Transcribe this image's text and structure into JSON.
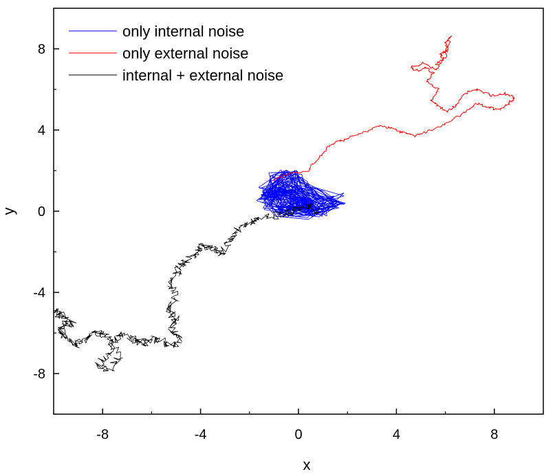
{
  "chart_data": {
    "type": "line",
    "title": "",
    "xlabel": "x",
    "ylabel": "y",
    "xlim": [
      -10,
      10
    ],
    "ylim": [
      -10,
      10
    ],
    "x_ticks": [
      -8,
      -4,
      0,
      4,
      8
    ],
    "y_ticks": [
      8,
      4,
      0,
      -4,
      -8
    ],
    "x_tick_labels": [
      "-8",
      "-4",
      "0",
      "4",
      "8"
    ],
    "y_tick_labels": [
      "8",
      "4",
      "0",
      "-4",
      "-8"
    ],
    "grid": false,
    "legend_position": "top-left",
    "series": [
      {
        "name": "only internal noise",
        "color": "#0000ff",
        "style": "dense-cluster",
        "center": [
          -0.3,
          0.6
        ],
        "spread": [
          0.9,
          0.6
        ],
        "points": [
          [
            -1.2,
            0.9
          ],
          [
            -0.8,
            1.5
          ],
          [
            -0.3,
            1.7
          ],
          [
            0.2,
            1.2
          ],
          [
            0.6,
            0.8
          ],
          [
            1.5,
            0.5
          ],
          [
            0.8,
            0.1
          ],
          [
            0.2,
            0.0
          ],
          [
            -0.5,
            0.1
          ],
          [
            -1.0,
            0.3
          ],
          [
            -1.3,
            0.6
          ],
          [
            -0.6,
            1.1
          ],
          [
            0.1,
            0.6
          ],
          [
            0.5,
            0.3
          ],
          [
            -0.2,
            0.4
          ],
          [
            -0.4,
            0.9
          ]
        ]
      },
      {
        "name": "only external noise",
        "color": "#ff0000",
        "style": "random-walk",
        "points": [
          [
            -1.1,
            1.5
          ],
          [
            -0.5,
            1.8
          ],
          [
            0.4,
            2.0
          ],
          [
            0.8,
            2.6
          ],
          [
            1.2,
            3.2
          ],
          [
            1.8,
            3.5
          ],
          [
            2.5,
            3.8
          ],
          [
            3.3,
            4.2
          ],
          [
            3.8,
            4.1
          ],
          [
            4.2,
            3.9
          ],
          [
            4.8,
            3.7
          ],
          [
            5.2,
            3.9
          ],
          [
            6.0,
            4.3
          ],
          [
            6.8,
            4.9
          ],
          [
            7.3,
            5.3
          ],
          [
            7.8,
            5.1
          ],
          [
            8.2,
            5.0
          ],
          [
            8.6,
            5.3
          ],
          [
            8.8,
            5.6
          ],
          [
            8.4,
            5.8
          ],
          [
            7.9,
            5.7
          ],
          [
            7.3,
            6.0
          ],
          [
            6.9,
            5.9
          ],
          [
            6.4,
            5.2
          ],
          [
            6.1,
            4.9
          ],
          [
            5.8,
            5.1
          ],
          [
            5.4,
            5.5
          ],
          [
            5.7,
            6.0
          ],
          [
            5.2,
            6.4
          ],
          [
            5.5,
            6.8
          ],
          [
            5.2,
            7.1
          ],
          [
            4.9,
            6.9
          ],
          [
            4.6,
            7.1
          ],
          [
            5.1,
            7.3
          ],
          [
            5.6,
            7.0
          ],
          [
            5.9,
            7.4
          ],
          [
            5.8,
            7.8
          ],
          [
            6.1,
            7.9
          ],
          [
            6.0,
            8.3
          ],
          [
            6.2,
            8.6
          ],
          [
            6.0,
            7.6
          ],
          [
            5.6,
            7.2
          ]
        ]
      },
      {
        "name": "internal + external noise",
        "color": "#000000",
        "style": "random-walk",
        "points": [
          [
            0.8,
            0.0
          ],
          [
            0.3,
            0.3
          ],
          [
            -0.2,
            0.0
          ],
          [
            -0.8,
            -0.2
          ],
          [
            -1.5,
            -0.3
          ],
          [
            -2.0,
            -0.6
          ],
          [
            -2.5,
            -0.9
          ],
          [
            -2.8,
            -1.5
          ],
          [
            -3.1,
            -2.1
          ],
          [
            -3.4,
            -1.9
          ],
          [
            -3.9,
            -1.7
          ],
          [
            -4.2,
            -2.2
          ],
          [
            -4.5,
            -2.3
          ],
          [
            -4.8,
            -2.6
          ],
          [
            -5.0,
            -3.1
          ],
          [
            -5.2,
            -3.6
          ],
          [
            -5.0,
            -4.2
          ],
          [
            -5.3,
            -4.8
          ],
          [
            -5.0,
            -5.3
          ],
          [
            -5.2,
            -5.9
          ],
          [
            -4.8,
            -6.3
          ],
          [
            -5.1,
            -6.6
          ],
          [
            -5.6,
            -6.4
          ],
          [
            -6.0,
            -6.3
          ],
          [
            -6.4,
            -6.5
          ],
          [
            -6.8,
            -6.3
          ],
          [
            -7.2,
            -6.1
          ],
          [
            -7.6,
            -6.5
          ],
          [
            -7.9,
            -7.2
          ],
          [
            -8.2,
            -7.6
          ],
          [
            -7.7,
            -7.8
          ],
          [
            -7.3,
            -7.2
          ],
          [
            -7.8,
            -6.2
          ],
          [
            -8.3,
            -6.0
          ],
          [
            -8.7,
            -6.3
          ],
          [
            -9.1,
            -6.6
          ],
          [
            -9.4,
            -6.3
          ],
          [
            -9.7,
            -6.0
          ],
          [
            -9.6,
            -5.5
          ],
          [
            -9.2,
            -5.6
          ],
          [
            -9.8,
            -5.0
          ],
          [
            -10.0,
            -4.9
          ],
          [
            -9.6,
            -5.2
          ]
        ]
      }
    ]
  }
}
